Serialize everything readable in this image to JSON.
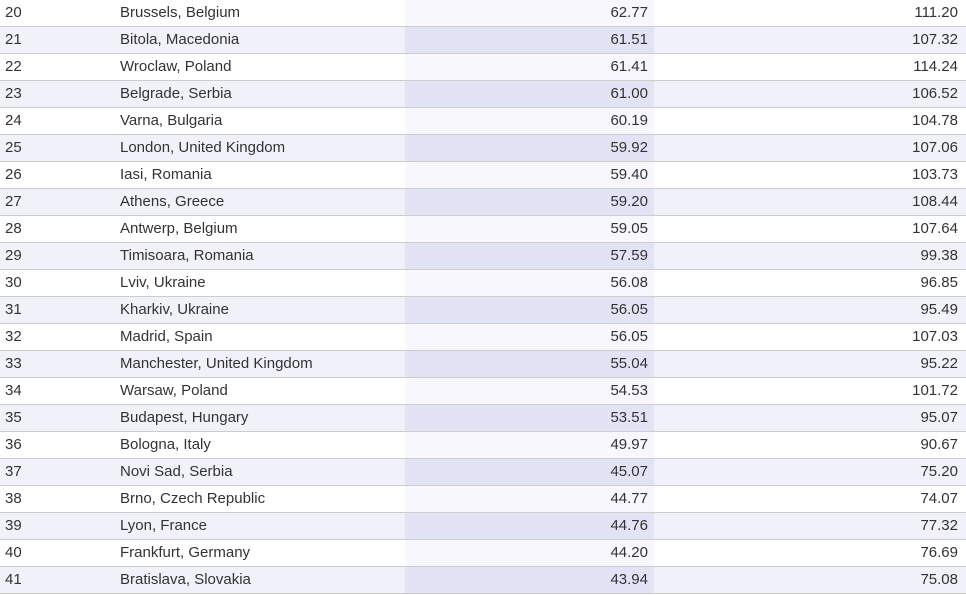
{
  "colors": {
    "text": "#333333",
    "row_border": "#cccccc",
    "row_alt_background": "#f1f1fa",
    "highlighted_column_background": "#f7f7fd",
    "highlighted_column_alt_background": "#e3e3f6"
  },
  "table": {
    "rows": [
      {
        "rank": "20",
        "city": "Brussels, Belgium",
        "value1": "62.77",
        "value2": "111.20"
      },
      {
        "rank": "21",
        "city": "Bitola, Macedonia",
        "value1": "61.51",
        "value2": "107.32"
      },
      {
        "rank": "22",
        "city": "Wroclaw, Poland",
        "value1": "61.41",
        "value2": "114.24"
      },
      {
        "rank": "23",
        "city": "Belgrade, Serbia",
        "value1": "61.00",
        "value2": "106.52"
      },
      {
        "rank": "24",
        "city": "Varna, Bulgaria",
        "value1": "60.19",
        "value2": "104.78"
      },
      {
        "rank": "25",
        "city": "London, United Kingdom",
        "value1": "59.92",
        "value2": "107.06"
      },
      {
        "rank": "26",
        "city": "Iasi, Romania",
        "value1": "59.40",
        "value2": "103.73"
      },
      {
        "rank": "27",
        "city": "Athens, Greece",
        "value1": "59.20",
        "value2": "108.44"
      },
      {
        "rank": "28",
        "city": "Antwerp, Belgium",
        "value1": "59.05",
        "value2": "107.64"
      },
      {
        "rank": "29",
        "city": "Timisoara, Romania",
        "value1": "57.59",
        "value2": "99.38"
      },
      {
        "rank": "30",
        "city": "Lviv, Ukraine",
        "value1": "56.08",
        "value2": "96.85"
      },
      {
        "rank": "31",
        "city": "Kharkiv, Ukraine",
        "value1": "56.05",
        "value2": "95.49"
      },
      {
        "rank": "32",
        "city": "Madrid, Spain",
        "value1": "56.05",
        "value2": "107.03"
      },
      {
        "rank": "33",
        "city": "Manchester, United Kingdom",
        "value1": "55.04",
        "value2": "95.22"
      },
      {
        "rank": "34",
        "city": "Warsaw, Poland",
        "value1": "54.53",
        "value2": "101.72"
      },
      {
        "rank": "35",
        "city": "Budapest, Hungary",
        "value1": "53.51",
        "value2": "95.07"
      },
      {
        "rank": "36",
        "city": "Bologna, Italy",
        "value1": "49.97",
        "value2": "90.67"
      },
      {
        "rank": "37",
        "city": "Novi Sad, Serbia",
        "value1": "45.07",
        "value2": "75.20"
      },
      {
        "rank": "38",
        "city": "Brno, Czech Republic",
        "value1": "44.77",
        "value2": "74.07"
      },
      {
        "rank": "39",
        "city": "Lyon, France",
        "value1": "44.76",
        "value2": "77.32"
      },
      {
        "rank": "40",
        "city": "Frankfurt, Germany",
        "value1": "44.20",
        "value2": "76.69"
      },
      {
        "rank": "41",
        "city": "Bratislava, Slovakia",
        "value1": "43.94",
        "value2": "75.08"
      }
    ]
  }
}
